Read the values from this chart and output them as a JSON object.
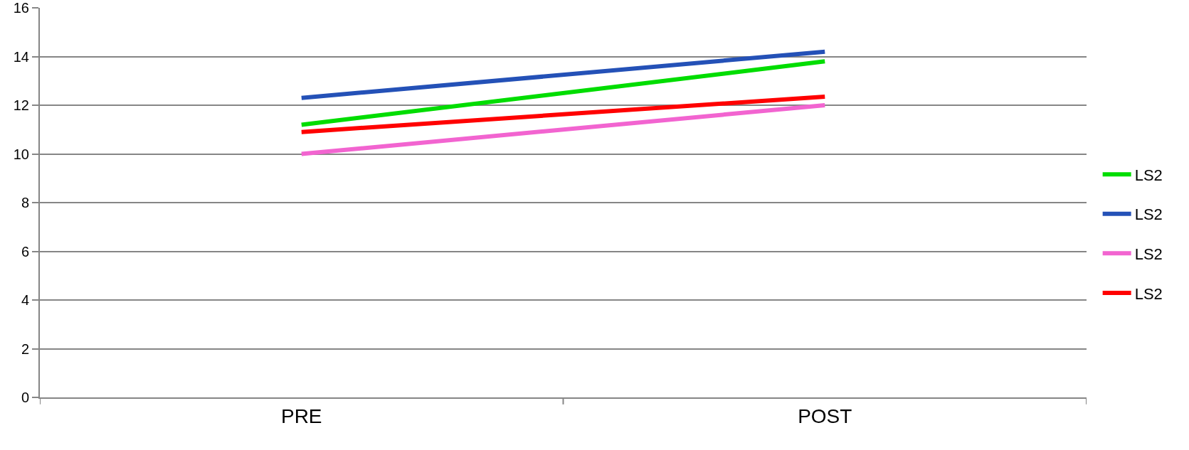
{
  "chart_data": {
    "type": "line",
    "categories": [
      "PRE",
      "POST"
    ],
    "series": [
      {
        "name": "LS2",
        "color": "#00dd00",
        "values": [
          11.2,
          13.8
        ]
      },
      {
        "name": "LS2",
        "color": "#2451b7",
        "values": [
          12.3,
          14.2
        ]
      },
      {
        "name": "LS2",
        "color": "#f264d0",
        "values": [
          10.0,
          12.0
        ]
      },
      {
        "name": "LS2",
        "color": "#ff0000",
        "values": [
          10.9,
          12.35
        ]
      }
    ],
    "ylim": [
      0,
      16
    ],
    "yticks": [
      0,
      2,
      4,
      6,
      8,
      10,
      12,
      14,
      16
    ],
    "grid": "y",
    "legend": "right",
    "marker": "none",
    "line_style": "solid"
  }
}
